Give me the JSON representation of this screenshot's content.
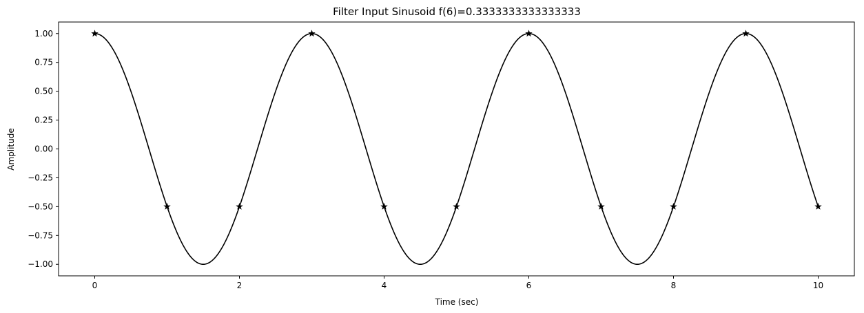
{
  "chart_data": {
    "type": "line",
    "title": "Filter Input Sinusoid f(6)=0.3333333333333333",
    "xlabel": "Time (sec)",
    "ylabel": "Amplitude",
    "xlim": [
      -0.5,
      10.5
    ],
    "ylim": [
      -1.1,
      1.1
    ],
    "x_ticks": [
      0,
      2,
      4,
      6,
      8,
      10
    ],
    "x_tick_labels": [
      "0",
      "2",
      "4",
      "6",
      "8",
      "10"
    ],
    "y_ticks": [
      1.0,
      0.75,
      0.5,
      0.25,
      0.0,
      -0.25,
      -0.5,
      -0.75,
      -1.0
    ],
    "y_tick_labels": [
      "1.00",
      "0.75",
      "0.50",
      "0.25",
      "0.00",
      "−0.25",
      "−0.50",
      "−0.75",
      "−1.00"
    ],
    "grid": false,
    "series": [
      {
        "kind": "continuous",
        "frequency_hz": 0.3333333333333333,
        "function": "cos",
        "x_range": [
          0,
          10
        ],
        "color": "#000000"
      },
      {
        "kind": "samples",
        "marker": "star",
        "color": "#000000",
        "x": [
          0,
          1,
          2,
          3,
          4,
          5,
          6,
          7,
          8,
          9,
          10
        ],
        "y": [
          1.0,
          -0.5,
          -0.5,
          1.0,
          -0.5,
          -0.5,
          1.0,
          -0.5,
          -0.5,
          1.0,
          -0.5
        ]
      }
    ]
  }
}
